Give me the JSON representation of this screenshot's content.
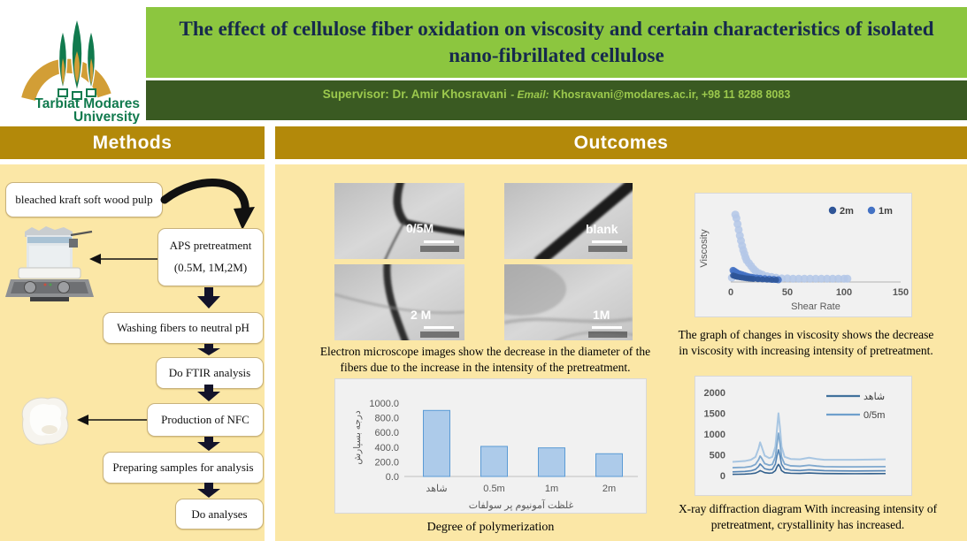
{
  "poster": {
    "logo": {
      "name_line1": "Tarbiat Modares",
      "name_line2": "University"
    },
    "title": "The effect of cellulose fiber oxidation on viscosity and certain characteristics of isolated nano-fibrillated cellulose",
    "supervisor_label": "Supervisor: Dr. Amir Khosravani",
    "supervisor_email_label": "- Email:",
    "supervisor_email_value": "Khosravani@modares.ac.ir, +98 11 8288 8083",
    "section_methods": "Methods",
    "section_outcomes": "Outcomes"
  },
  "colors": {
    "gold_header": "#B3890A",
    "title_green": "#8CC63F",
    "dark_green_bar": "#3A5A22",
    "panel_yellow": "#FBE7A6",
    "logo_green": "#117A4E",
    "logo_arch_gold": "#D29E36",
    "supervisor_text": "#9CC94D",
    "bar_fill": "#ADCBEA",
    "bar_border": "#5B9BD5"
  },
  "flowchart": {
    "box1": "bleached kraft soft wood pulp",
    "box2_line1": "APS pretreatment",
    "box2_line2": "(0.5M, 1M,2M)",
    "box3": "Washing fibers to neutral pH",
    "box4": "Do FTIR analysis",
    "box5": "Production of NFC",
    "box6": "Preparing samples for analysis",
    "box7": "Do analyses"
  },
  "micrographs": {
    "labels": [
      "0/5M",
      "blank",
      "2 M",
      "1M"
    ],
    "caption": "Electron microscope images show the decrease in the diameter of the fibers due to the increase in the intensity of the pretreatment."
  },
  "chart_data": [
    {
      "id": "viscosity",
      "type": "scatter",
      "xlabel": "Shear Rate",
      "ylabel": "Viscosity",
      "xticks": [
        0,
        50,
        100,
        150
      ],
      "xlim": [
        0,
        150
      ],
      "ylim": [
        0,
        100
      ],
      "grid": false,
      "legend": [
        "2m",
        "1m"
      ],
      "legend_colors": [
        "#2F5597",
        "#4472C4"
      ],
      "caption": "The graph of changes in viscosity shows the decrease in viscosity with increasing intensity of pretreatment.",
      "series": [
        {
          "name": "",
          "color": "#B4C7E7",
          "marker": 4.5,
          "points": [
            [
              1,
              6
            ],
            [
              4,
              93
            ],
            [
              5,
              88
            ],
            [
              6,
              80
            ],
            [
              7,
              72
            ],
            [
              8,
              64
            ],
            [
              9,
              57
            ],
            [
              10,
              50
            ],
            [
              11,
              44
            ],
            [
              12,
              39
            ],
            [
              13,
              34
            ],
            [
              14,
              30
            ],
            [
              16,
              26
            ],
            [
              18,
              22
            ],
            [
              20,
              18
            ],
            [
              22,
              15
            ],
            [
              25,
              12
            ],
            [
              28,
              10
            ],
            [
              32,
              8
            ],
            [
              36,
              7
            ],
            [
              40,
              6
            ],
            [
              45,
              5
            ],
            [
              50,
              5
            ],
            [
              55,
              4.5
            ],
            [
              60,
              4.5
            ],
            [
              65,
              4.5
            ],
            [
              70,
              4.5
            ],
            [
              75,
              4.5
            ],
            [
              80,
              4.5
            ],
            [
              85,
              4.5
            ],
            [
              90,
              4.5
            ],
            [
              95,
              4.5
            ],
            [
              100,
              4.5
            ],
            [
              103,
              4.5
            ]
          ]
        },
        {
          "name": "1m",
          "color": "#4472C4",
          "marker": 4,
          "points": [
            [
              2,
              16
            ],
            [
              3,
              15
            ],
            [
              4,
              14
            ],
            [
              5,
              13
            ],
            [
              6,
              12
            ],
            [
              8,
              11
            ],
            [
              10,
              10
            ],
            [
              12,
              9
            ],
            [
              14,
              8
            ],
            [
              16,
              7
            ],
            [
              18,
              6.5
            ],
            [
              20,
              6
            ],
            [
              23,
              5.5
            ],
            [
              26,
              5
            ],
            [
              30,
              4.5
            ],
            [
              34,
              4
            ],
            [
              38,
              3.5
            ],
            [
              42,
              3
            ]
          ]
        },
        {
          "name": "2m",
          "color": "#2F5597",
          "marker": 3.4,
          "points": [
            [
              2,
              9
            ],
            [
              3,
              8.5
            ],
            [
              4,
              8
            ],
            [
              5,
              7.5
            ],
            [
              6,
              7
            ],
            [
              8,
              6.5
            ],
            [
              10,
              6
            ],
            [
              12,
              5.5
            ],
            [
              14,
              5
            ],
            [
              16,
              4.8
            ],
            [
              18,
              4.5
            ],
            [
              20,
              4.2
            ],
            [
              24,
              3.8
            ],
            [
              28,
              3.5
            ],
            [
              32,
              3.2
            ],
            [
              36,
              3
            ],
            [
              40,
              2.8
            ]
          ]
        }
      ]
    },
    {
      "id": "degree-of-polymerization",
      "type": "bar",
      "categories": [
        "شاهد",
        "0.5m",
        "1m",
        "2m"
      ],
      "values": [
        900,
        410,
        390,
        310
      ],
      "ytick_values": [
        0,
        200,
        400,
        600,
        800,
        1000
      ],
      "ytick_labels": [
        "0.0",
        "200.0",
        "400.0",
        "600.0",
        "800.0",
        "1000.0"
      ],
      "ylim": [
        0,
        1000
      ],
      "ylabel": "درجه بسپارش",
      "xlabel": "غلظت آمونیوم پر سولفات",
      "caption": "Degree of polymerization"
    },
    {
      "id": "xrd",
      "type": "line",
      "ytick_values": [
        0,
        500,
        1000,
        1500,
        2000
      ],
      "ylim": [
        0,
        2000
      ],
      "xlim": [
        0,
        100
      ],
      "legend": [
        {
          "name": "شاهد",
          "color": "#41719C"
        },
        {
          "name": "0/5m",
          "color": "#6FA0CC"
        }
      ],
      "caption": "X-ray diffraction diagram With increasing intensity of pretreatment, crystallinity has increased.",
      "series": [
        {
          "name": "",
          "color": "#A8C6E2",
          "width": 2,
          "points": [
            [
              0,
              330
            ],
            [
              4,
              340
            ],
            [
              8,
              350
            ],
            [
              12,
              380
            ],
            [
              15,
              450
            ],
            [
              17,
              650
            ],
            [
              18,
              800
            ],
            [
              19,
              700
            ],
            [
              21,
              480
            ],
            [
              24,
              420
            ],
            [
              26,
              450
            ],
            [
              28,
              700
            ],
            [
              29,
              1100
            ],
            [
              30,
              1500
            ],
            [
              31,
              1150
            ],
            [
              32,
              700
            ],
            [
              34,
              450
            ],
            [
              38,
              400
            ],
            [
              44,
              390
            ],
            [
              50,
              430
            ],
            [
              55,
              400
            ],
            [
              60,
              380
            ],
            [
              70,
              380
            ],
            [
              80,
              380
            ],
            [
              90,
              385
            ],
            [
              100,
              390
            ]
          ]
        },
        {
          "name": "0/5m",
          "color": "#7FA8CE",
          "width": 1.8,
          "points": [
            [
              0,
              190
            ],
            [
              4,
              195
            ],
            [
              8,
              200
            ],
            [
              12,
              220
            ],
            [
              15,
              270
            ],
            [
              17,
              380
            ],
            [
              18,
              470
            ],
            [
              19,
              420
            ],
            [
              21,
              290
            ],
            [
              24,
              250
            ],
            [
              26,
              270
            ],
            [
              28,
              450
            ],
            [
              29,
              750
            ],
            [
              30,
              1020
            ],
            [
              31,
              780
            ],
            [
              32,
              450
            ],
            [
              34,
              280
            ],
            [
              38,
              235
            ],
            [
              44,
              225
            ],
            [
              50,
              250
            ],
            [
              55,
              230
            ],
            [
              60,
              215
            ],
            [
              70,
              210
            ],
            [
              80,
              210
            ],
            [
              90,
              212
            ],
            [
              100,
              215
            ]
          ]
        },
        {
          "name": "",
          "color": "#5585B5",
          "width": 1.6,
          "points": [
            [
              0,
              90
            ],
            [
              4,
              95
            ],
            [
              8,
              100
            ],
            [
              12,
              115
            ],
            [
              15,
              150
            ],
            [
              17,
              220
            ],
            [
              18,
              280
            ],
            [
              19,
              245
            ],
            [
              21,
              165
            ],
            [
              24,
              140
            ],
            [
              26,
              150
            ],
            [
              28,
              280
            ],
            [
              29,
              470
            ],
            [
              30,
              620
            ],
            [
              31,
              480
            ],
            [
              32,
              270
            ],
            [
              34,
              160
            ],
            [
              38,
              130
            ],
            [
              44,
              122
            ],
            [
              50,
              140
            ],
            [
              55,
              128
            ],
            [
              60,
              118
            ],
            [
              70,
              112
            ],
            [
              80,
              110
            ],
            [
              90,
              112
            ],
            [
              100,
              115
            ]
          ]
        },
        {
          "name": "شاهد",
          "color": "#33618E",
          "width": 1.6,
          "points": [
            [
              0,
              30
            ],
            [
              4,
              32
            ],
            [
              8,
              36
            ],
            [
              12,
              45
            ],
            [
              15,
              60
            ],
            [
              17,
              95
            ],
            [
              18,
              120
            ],
            [
              19,
              105
            ],
            [
              21,
              70
            ],
            [
              24,
              58
            ],
            [
              26,
              64
            ],
            [
              28,
              120
            ],
            [
              29,
              210
            ],
            [
              30,
              270
            ],
            [
              31,
              215
            ],
            [
              32,
              120
            ],
            [
              34,
              70
            ],
            [
              38,
              56
            ],
            [
              44,
              52
            ],
            [
              50,
              62
            ],
            [
              55,
              55
            ],
            [
              60,
              50
            ],
            [
              70,
              46
            ],
            [
              80,
              45
            ],
            [
              90,
              46
            ],
            [
              100,
              48
            ]
          ]
        }
      ]
    }
  ]
}
